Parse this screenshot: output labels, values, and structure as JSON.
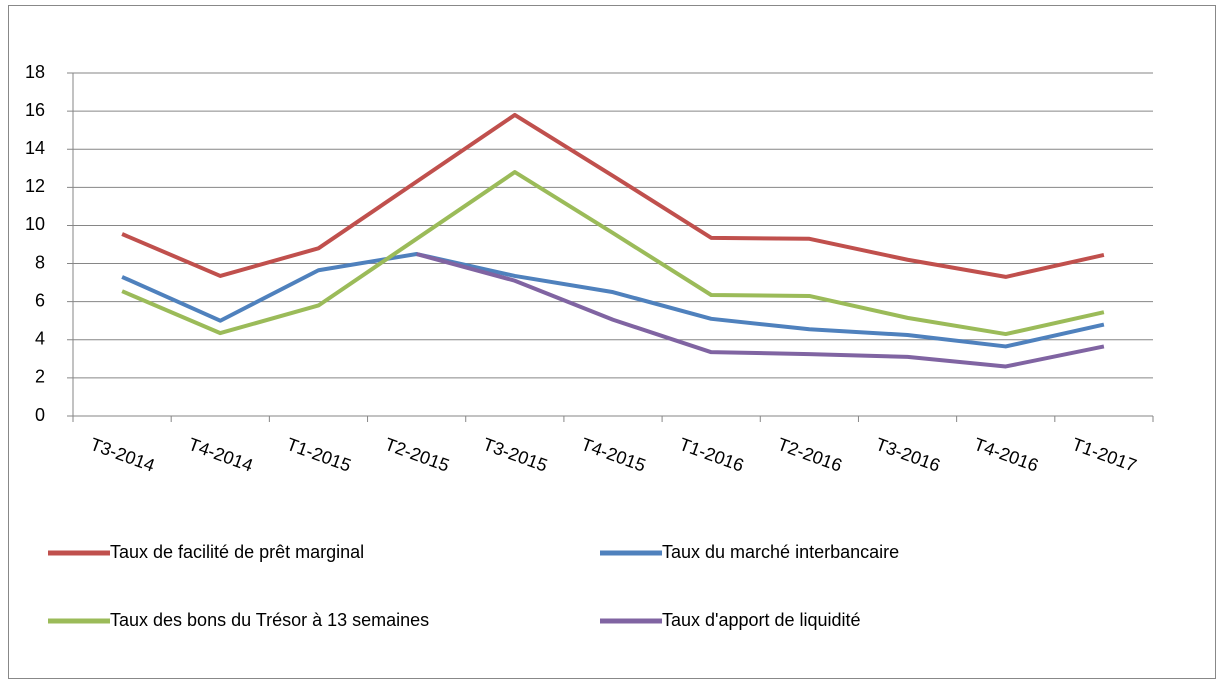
{
  "chart_data": {
    "type": "line",
    "categories": [
      "T3-2014",
      "T4-2014",
      "T1-2015",
      "T2-2015",
      "T3-2015",
      "T4-2015",
      "T1-2016",
      "T2-2016",
      "T3-2016",
      "T4-2016",
      "T1-2017"
    ],
    "series": [
      {
        "name": "Taux de facilité de prêt marginal",
        "color": "#c0504d",
        "values": [
          9.55,
          7.35,
          8.8,
          12.3,
          15.8,
          12.6,
          9.35,
          9.3,
          8.2,
          7.3,
          8.45
        ]
      },
      {
        "name": "Taux du marché interbancaire",
        "color": "#4f81bd",
        "values": [
          7.3,
          5.0,
          7.65,
          8.5,
          7.35,
          6.5,
          5.1,
          4.55,
          4.25,
          3.65,
          4.8
        ]
      },
      {
        "name": "Taux des bons du Trésor à 13 semaines",
        "color": "#9bbb59",
        "values": [
          6.55,
          4.35,
          5.8,
          9.3,
          12.8,
          9.6,
          6.35,
          6.3,
          5.15,
          4.3,
          5.45
        ]
      },
      {
        "name": "Taux d'apport de liquidité",
        "color": "#8064a2",
        "values": [
          null,
          null,
          null,
          8.5,
          7.1,
          5.05,
          3.35,
          3.25,
          3.1,
          2.6,
          3.65
        ]
      }
    ],
    "ylim": [
      0,
      18
    ],
    "yticks": [
      0,
      2,
      4,
      6,
      8,
      10,
      12,
      14,
      16,
      18
    ],
    "grid": true
  }
}
